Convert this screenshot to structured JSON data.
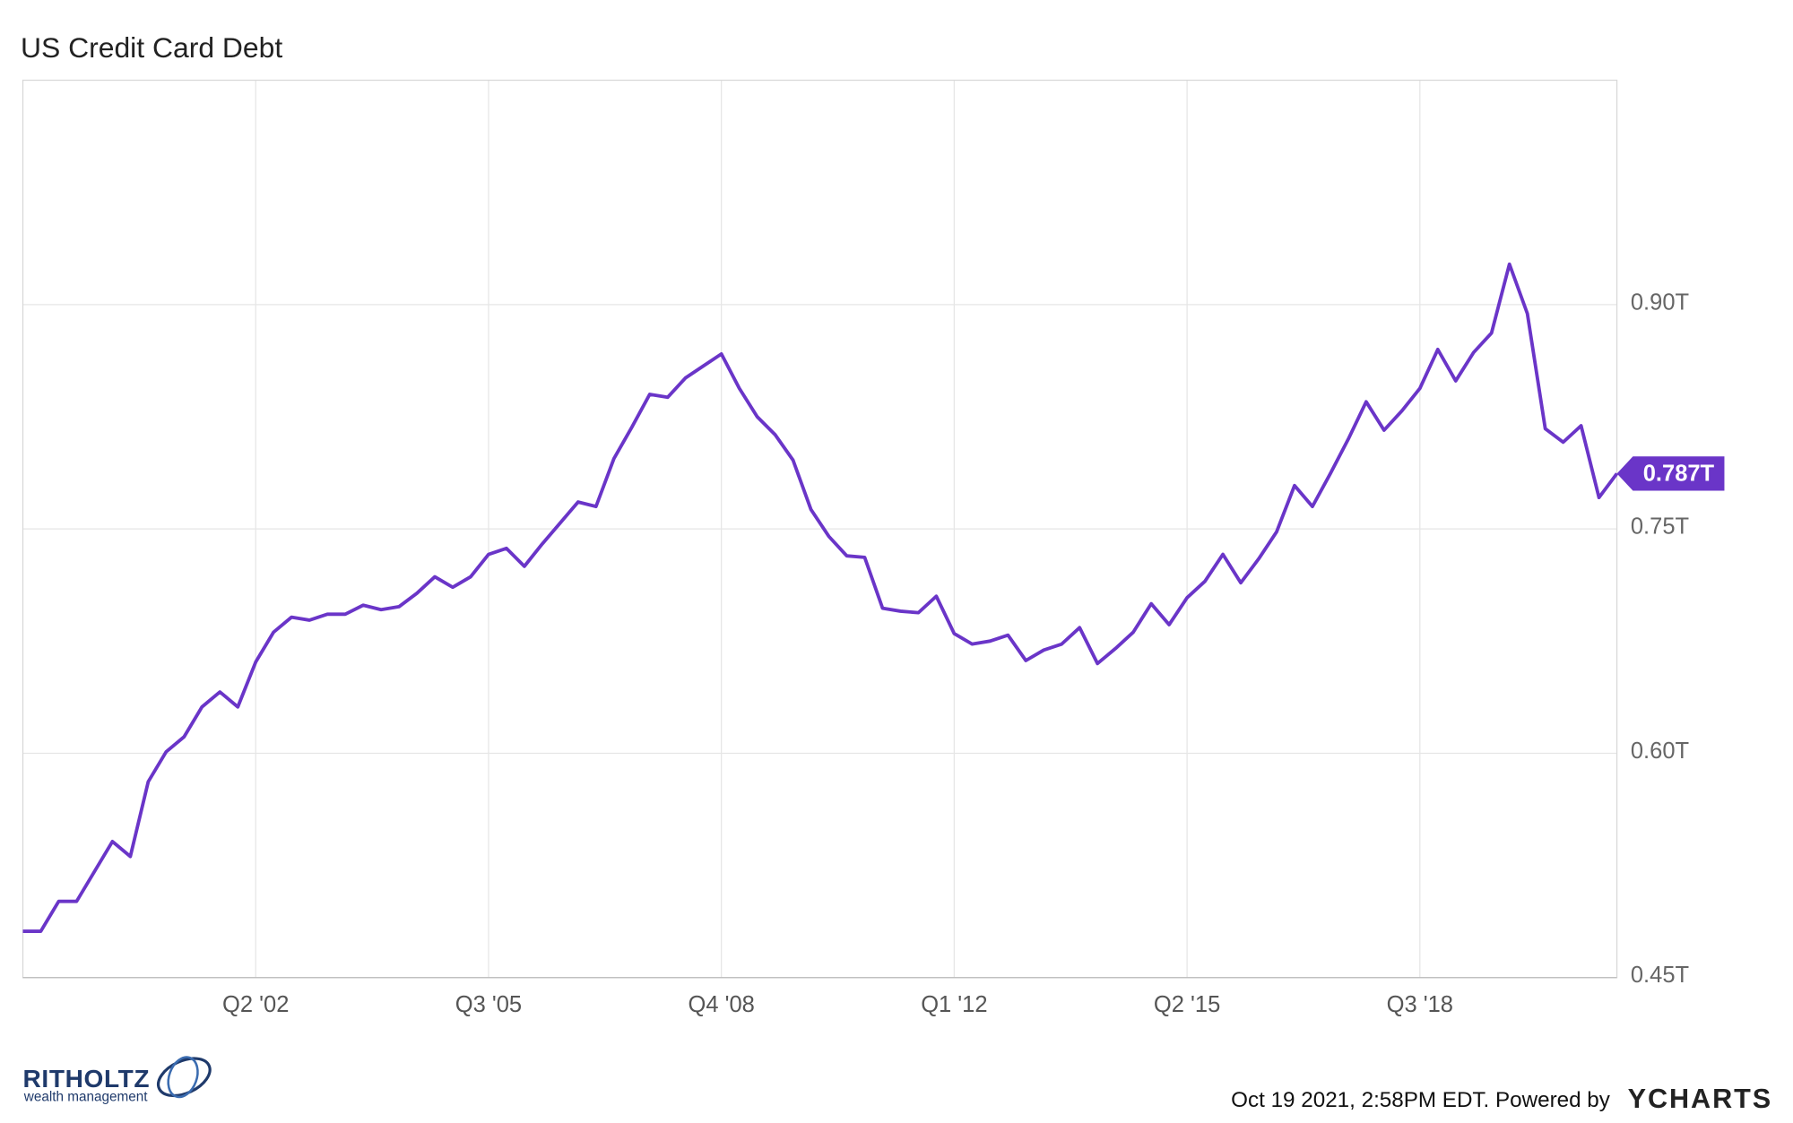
{
  "chart_data": {
    "type": "line",
    "title": "US Credit Card Debt",
    "categories": [
      null,
      null,
      null,
      null,
      null,
      null,
      null,
      null,
      null,
      null,
      null,
      null,
      null,
      "Q2 '02",
      null,
      null,
      null,
      null,
      null,
      null,
      null,
      null,
      null,
      null,
      null,
      null,
      "Q3 '05",
      null,
      null,
      null,
      null,
      null,
      null,
      null,
      null,
      null,
      null,
      null,
      null,
      "Q4 '08",
      null,
      null,
      null,
      null,
      null,
      null,
      null,
      null,
      null,
      null,
      null,
      null,
      "Q1 '12",
      null,
      null,
      null,
      null,
      null,
      null,
      null,
      null,
      null,
      null,
      null,
      null,
      "Q2 '15",
      null,
      null,
      null,
      null,
      null,
      null,
      null,
      null,
      null,
      null,
      null,
      null,
      "Q3 '18",
      null,
      null,
      null,
      null,
      null,
      null,
      null,
      null,
      null,
      null,
      null
    ],
    "series": [
      {
        "name": "US Credit Card Debt",
        "color": "#6a35c8",
        "values": [
          0.481,
          0.481,
          0.501,
          0.501,
          0.521,
          0.541,
          0.531,
          0.581,
          0.601,
          0.611,
          0.631,
          0.641,
          0.631,
          0.661,
          0.681,
          0.691,
          0.689,
          0.693,
          0.693,
          0.699,
          0.696,
          0.698,
          0.707,
          0.718,
          0.711,
          0.718,
          0.733,
          0.737,
          0.725,
          0.74,
          0.754,
          0.768,
          0.765,
          0.797,
          0.818,
          0.84,
          0.838,
          0.851,
          0.859,
          0.867,
          0.844,
          0.825,
          0.813,
          0.796,
          0.763,
          0.745,
          0.732,
          0.731,
          0.697,
          0.695,
          0.694,
          0.705,
          0.68,
          0.673,
          0.675,
          0.679,
          0.662,
          0.669,
          0.673,
          0.684,
          0.66,
          0.67,
          0.681,
          0.7,
          0.686,
          0.704,
          0.715,
          0.733,
          0.714,
          0.73,
          0.748,
          0.779,
          0.765,
          0.787,
          0.81,
          0.835,
          0.816,
          0.829,
          0.844,
          0.87,
          0.849,
          0.868,
          0.881,
          0.927,
          0.894,
          0.817,
          0.808,
          0.819,
          0.771,
          0.787
        ],
        "value_labels": [
          null,
          null,
          null,
          null,
          null,
          null,
          null,
          null,
          null,
          null,
          null,
          null,
          null,
          null,
          null,
          null,
          null,
          null,
          null,
          null,
          null,
          null,
          null,
          null,
          null,
          null,
          null,
          null,
          null,
          null,
          null,
          null,
          null,
          null,
          null,
          null,
          null,
          null,
          null,
          null,
          null,
          null,
          null,
          null,
          null,
          null,
          null,
          null,
          null,
          null,
          null,
          null,
          null,
          null,
          null,
          null,
          null,
          null,
          null,
          null,
          null,
          null,
          null,
          null,
          null,
          null,
          null,
          null,
          null,
          null,
          null,
          null,
          null,
          null,
          null,
          null,
          null,
          null,
          null,
          null,
          null,
          null,
          null,
          null,
          null,
          null,
          null,
          null,
          null,
          "0.787T"
        ]
      }
    ],
    "ylim": [
      0.45,
      1.05
    ],
    "yticks": [
      {
        "value": 0.45,
        "label": "0.45T"
      },
      {
        "value": 0.6,
        "label": "0.60T"
      },
      {
        "value": 0.75,
        "label": "0.75T"
      },
      {
        "value": 0.9,
        "label": "0.90T"
      }
    ],
    "grid": true,
    "footer": {
      "timestamp": "Oct 19 2021, 2:58PM EDT. Powered by",
      "brand": "YCHARTS"
    },
    "logo": {
      "name": "RITHOLTZ",
      "tagline": "wealth management"
    }
  }
}
